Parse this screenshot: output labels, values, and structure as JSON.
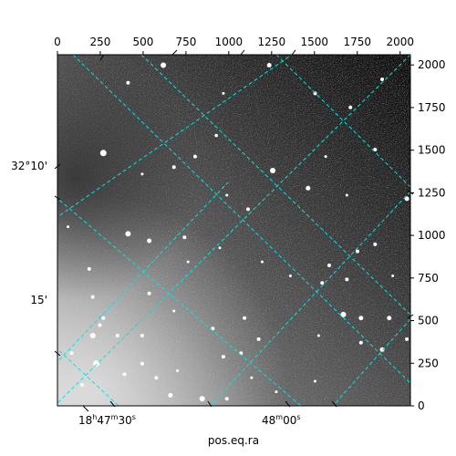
{
  "chart_data": {
    "type": "image",
    "description_colors": {
      "grid": "#00e5e5",
      "axis": "#000000",
      "background": "#ffffff"
    },
    "pixel_axis": {
      "x_ticks": [
        0,
        250,
        500,
        750,
        1000,
        1250,
        1500,
        1750,
        2000
      ],
      "y_ticks": [
        0,
        250,
        500,
        750,
        1000,
        1250,
        1500,
        1750,
        2000
      ],
      "xlim": [
        0,
        2060
      ],
      "ylim": [
        0,
        2060
      ]
    },
    "world_axis": {
      "xlabel": "pos.eq.ra",
      "ra_labels": [
        {
          "hm": "18",
          "h": "h",
          "m": "47",
          "mu": "m",
          "s": "30",
          "su": "s"
        },
        {
          "hm": "",
          "h": "",
          "m": "48",
          "mu": "m",
          "s": "00",
          "su": "s"
        }
      ],
      "dec_labels": [
        "32°10'",
        "15'"
      ]
    },
    "grid": true
  },
  "stars": [
    [
      0.3,
      0.03,
      3
    ],
    [
      0.6,
      0.03,
      2.5
    ],
    [
      0.47,
      0.11,
      1.5
    ],
    [
      0.2,
      0.08,
      2
    ],
    [
      0.92,
      0.07,
      2
    ],
    [
      0.73,
      0.11,
      2
    ],
    [
      0.83,
      0.15,
      2
    ],
    [
      0.39,
      0.29,
      2
    ],
    [
      0.45,
      0.23,
      1.8
    ],
    [
      0.13,
      0.28,
      3.5
    ],
    [
      0.24,
      0.34,
      1.5
    ],
    [
      0.33,
      0.32,
      2
    ],
    [
      0.48,
      0.4,
      1.5
    ],
    [
      0.61,
      0.33,
      3
    ],
    [
      0.71,
      0.38,
      2.5
    ],
    [
      0.76,
      0.29,
      1.5
    ],
    [
      0.9,
      0.27,
      2
    ],
    [
      0.99,
      0.41,
      2.5
    ],
    [
      0.82,
      0.4,
      1.5
    ],
    [
      0.54,
      0.44,
      2
    ],
    [
      0.2,
      0.51,
      3
    ],
    [
      0.26,
      0.53,
      2.5
    ],
    [
      0.36,
      0.52,
      2
    ],
    [
      0.37,
      0.59,
      1.5
    ],
    [
      0.46,
      0.55,
      1.5
    ],
    [
      0.58,
      0.59,
      1.5
    ],
    [
      0.77,
      0.6,
      2
    ],
    [
      0.85,
      0.56,
      2
    ],
    [
      0.9,
      0.54,
      2
    ],
    [
      0.95,
      0.63,
      1.5
    ],
    [
      0.82,
      0.64,
      2
    ],
    [
      0.75,
      0.65,
      2
    ],
    [
      0.66,
      0.63,
      1.5
    ],
    [
      0.1,
      0.69,
      2
    ],
    [
      0.26,
      0.68,
      2
    ],
    [
      0.09,
      0.61,
      2
    ],
    [
      0.03,
      0.49,
      1.5
    ],
    [
      0.13,
      0.75,
      2
    ],
    [
      0.33,
      0.73,
      1.5
    ],
    [
      0.44,
      0.78,
      2
    ],
    [
      0.53,
      0.75,
      2
    ],
    [
      0.57,
      0.81,
      2
    ],
    [
      0.81,
      0.74,
      3
    ],
    [
      0.86,
      0.75,
      2.5
    ],
    [
      0.94,
      0.75,
      2.5
    ],
    [
      0.74,
      0.8,
      1.5
    ],
    [
      0.86,
      0.82,
      2
    ],
    [
      0.92,
      0.84,
      2.5
    ],
    [
      0.99,
      0.81,
      2
    ],
    [
      0.12,
      0.77,
      2
    ],
    [
      0.24,
      0.8,
      2
    ],
    [
      0.1,
      0.8,
      3
    ],
    [
      0.17,
      0.8,
      2
    ],
    [
      0.11,
      0.88,
      3.5
    ],
    [
      0.24,
      0.88,
      2
    ],
    [
      0.04,
      0.85,
      2
    ],
    [
      0.19,
      0.91,
      2
    ],
    [
      0.28,
      0.92,
      2
    ],
    [
      0.34,
      0.9,
      1.5
    ],
    [
      0.47,
      0.86,
      2
    ],
    [
      0.55,
      0.92,
      1.5
    ],
    [
      0.41,
      0.98,
      3
    ],
    [
      0.32,
      0.97,
      2.5
    ],
    [
      0.48,
      0.98,
      2
    ],
    [
      0.62,
      0.96,
      1.5
    ],
    [
      0.73,
      0.93,
      1.5
    ],
    [
      0.52,
      0.85,
      2
    ],
    [
      0.07,
      0.94,
      2
    ]
  ]
}
